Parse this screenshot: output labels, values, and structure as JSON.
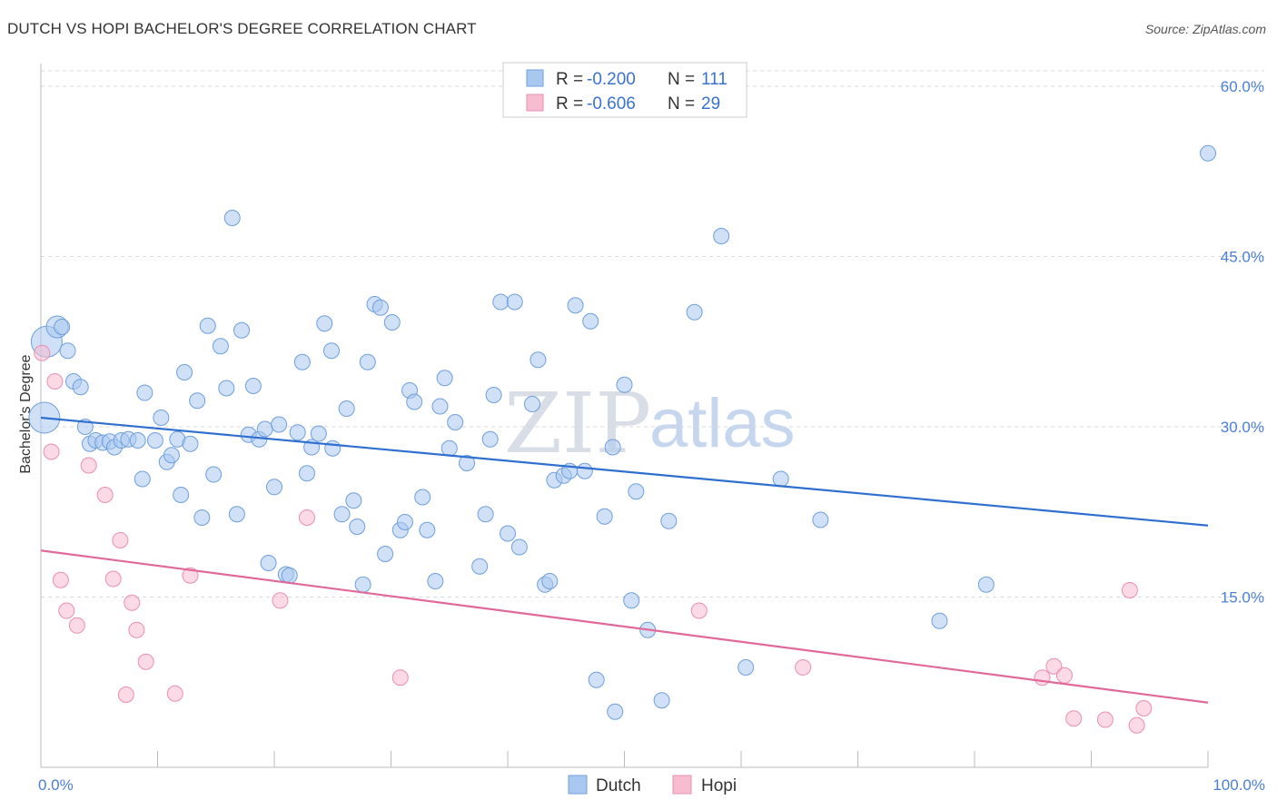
{
  "title": "DUTCH VS HOPI BACHELOR'S DEGREE CORRELATION CHART",
  "source": "Source: ZipAtlas.com",
  "watermark": {
    "zip": "ZIP",
    "atlas": "atlas"
  },
  "colors": {
    "dutch_fill": "#a9c8f0",
    "dutch_stroke": "#6f9fdc",
    "dutch_line": "#2f6fcf",
    "hopi_fill": "#f7bcd0",
    "hopi_stroke": "#ea8fb0",
    "hopi_line": "#e0699a",
    "tick": "#4a7fd4",
    "grid": "#d9d9d9"
  },
  "legend": {
    "rows": [
      {
        "r_label": "R = ",
        "r_value": "-0.200",
        "n_label": "N = ",
        "n_value": "111"
      },
      {
        "r_label": "R = ",
        "r_value": "-0.606",
        "n_label": "N = ",
        "n_value": "29"
      }
    ]
  },
  "chart_data": {
    "type": "scatter",
    "title": "DUTCH VS HOPI BACHELOR'S DEGREE CORRELATION CHART",
    "xlabel": "",
    "ylabel": "Bachelor's Degree",
    "xlim": [
      0,
      100
    ],
    "ylim": [
      0,
      62
    ],
    "x_tick_labels": [
      {
        "value": 0,
        "label": "0.0%"
      },
      {
        "value": 100,
        "label": "100.0%"
      }
    ],
    "y_tick_labels": [
      {
        "value": 15,
        "label": "15.0%"
      },
      {
        "value": 30,
        "label": "30.0%"
      },
      {
        "value": 45,
        "label": "45.0%"
      },
      {
        "value": 60,
        "label": "60.0%"
      }
    ],
    "grid": true,
    "legend_position": "top-center",
    "series": [
      {
        "name": "Dutch",
        "r": -0.2,
        "n": 111,
        "trend": {
          "x0": 0,
          "y0": 30.8,
          "x1": 100,
          "y1": 21.3
        },
        "points": [
          [
            0.5,
            37.5,
            3
          ],
          [
            0.3,
            30.8,
            3
          ],
          [
            1.4,
            38.8,
            2
          ],
          [
            1.8,
            38.8,
            1
          ],
          [
            2.3,
            36.7,
            1
          ],
          [
            2.8,
            34.0,
            1
          ],
          [
            3.4,
            33.5,
            1
          ],
          [
            3.8,
            30.0,
            1
          ],
          [
            4.2,
            28.5,
            1
          ],
          [
            4.7,
            28.8,
            1
          ],
          [
            5.3,
            28.6,
            1
          ],
          [
            5.9,
            28.7,
            1
          ],
          [
            6.3,
            28.2,
            1
          ],
          [
            6.9,
            28.8,
            1
          ],
          [
            7.5,
            28.9,
            1
          ],
          [
            8.3,
            28.8,
            1
          ],
          [
            8.7,
            25.4,
            1
          ],
          [
            8.9,
            33.0,
            1
          ],
          [
            9.8,
            28.8,
            1
          ],
          [
            10.3,
            30.8,
            1
          ],
          [
            10.8,
            26.9,
            1
          ],
          [
            11.2,
            27.5,
            1
          ],
          [
            11.7,
            28.9,
            1
          ],
          [
            12.0,
            24.0,
            1
          ],
          [
            12.3,
            34.8,
            1
          ],
          [
            12.8,
            28.5,
            1
          ],
          [
            13.4,
            32.3,
            1
          ],
          [
            13.8,
            22.0,
            1
          ],
          [
            14.3,
            38.9,
            1
          ],
          [
            14.8,
            25.8,
            1
          ],
          [
            15.4,
            37.1,
            1
          ],
          [
            15.9,
            33.4,
            1
          ],
          [
            16.4,
            48.4,
            1
          ],
          [
            16.8,
            22.3,
            1
          ],
          [
            17.2,
            38.5,
            1
          ],
          [
            17.8,
            29.3,
            1
          ],
          [
            18.2,
            33.6,
            1
          ],
          [
            18.7,
            28.9,
            1
          ],
          [
            19.2,
            29.8,
            1
          ],
          [
            19.5,
            18.0,
            1
          ],
          [
            20.0,
            24.7,
            1
          ],
          [
            20.4,
            30.2,
            1
          ],
          [
            21.0,
            17.0,
            1
          ],
          [
            21.3,
            16.9,
            1
          ],
          [
            22.0,
            29.5,
            1
          ],
          [
            22.4,
            35.7,
            1
          ],
          [
            22.8,
            25.9,
            1
          ],
          [
            23.2,
            28.2,
            1
          ],
          [
            23.8,
            29.4,
            1
          ],
          [
            24.3,
            39.1,
            1
          ],
          [
            24.9,
            36.7,
            1
          ],
          [
            25.0,
            28.1,
            1
          ],
          [
            25.8,
            22.3,
            1
          ],
          [
            26.2,
            31.6,
            1
          ],
          [
            26.8,
            23.5,
            1
          ],
          [
            27.1,
            21.2,
            1
          ],
          [
            27.6,
            16.1,
            1
          ],
          [
            28.0,
            35.7,
            1
          ],
          [
            28.6,
            40.8,
            1
          ],
          [
            29.1,
            40.5,
            1
          ],
          [
            29.5,
            18.8,
            1
          ],
          [
            30.1,
            39.2,
            1
          ],
          [
            30.8,
            20.9,
            1
          ],
          [
            31.2,
            21.6,
            1
          ],
          [
            31.6,
            33.2,
            1
          ],
          [
            32.0,
            32.2,
            1
          ],
          [
            32.7,
            23.8,
            1
          ],
          [
            33.1,
            20.9,
            1
          ],
          [
            33.8,
            16.4,
            1
          ],
          [
            34.2,
            31.8,
            1
          ],
          [
            34.6,
            34.3,
            1
          ],
          [
            35.0,
            28.1,
            1
          ],
          [
            35.5,
            30.4,
            1
          ],
          [
            36.5,
            26.8,
            1
          ],
          [
            37.6,
            17.7,
            1
          ],
          [
            38.1,
            22.3,
            1
          ],
          [
            38.5,
            28.9,
            1
          ],
          [
            38.8,
            32.8,
            1
          ],
          [
            39.4,
            41.0,
            1
          ],
          [
            40.0,
            20.6,
            1
          ],
          [
            40.6,
            41.0,
            1
          ],
          [
            41.0,
            19.4,
            1
          ],
          [
            42.1,
            32.0,
            1
          ],
          [
            42.6,
            35.9,
            1
          ],
          [
            43.2,
            16.1,
            1
          ],
          [
            43.6,
            16.4,
            1
          ],
          [
            44.0,
            25.3,
            1
          ],
          [
            44.8,
            25.7,
            1
          ],
          [
            45.3,
            26.1,
            1
          ],
          [
            45.8,
            40.7,
            1
          ],
          [
            46.6,
            26.1,
            1
          ],
          [
            47.1,
            39.3,
            1
          ],
          [
            47.6,
            7.7,
            1
          ],
          [
            48.3,
            22.1,
            1
          ],
          [
            49.0,
            28.2,
            1
          ],
          [
            49.2,
            4.9,
            1
          ],
          [
            50.0,
            33.7,
            1
          ],
          [
            50.6,
            14.7,
            1
          ],
          [
            51.0,
            24.3,
            1
          ],
          [
            52.0,
            12.1,
            1
          ],
          [
            53.2,
            5.9,
            1
          ],
          [
            53.8,
            21.7,
            1
          ],
          [
            56.0,
            40.1,
            1
          ],
          [
            58.3,
            46.8,
            1
          ],
          [
            60.4,
            8.8,
            1
          ],
          [
            63.4,
            25.4,
            1
          ],
          [
            66.8,
            21.8,
            1
          ],
          [
            77.0,
            12.9,
            1
          ],
          [
            81.0,
            16.1,
            1
          ],
          [
            100.0,
            54.1,
            1
          ]
        ]
      },
      {
        "name": "Hopi",
        "r": -0.606,
        "n": 29,
        "trend": {
          "x0": 0,
          "y0": 19.1,
          "x1": 100,
          "y1": 5.7
        },
        "points": [
          [
            0.1,
            36.5
          ],
          [
            0.9,
            27.8
          ],
          [
            1.2,
            34.0
          ],
          [
            1.7,
            16.5
          ],
          [
            2.2,
            13.8
          ],
          [
            3.1,
            12.5
          ],
          [
            4.1,
            26.6
          ],
          [
            5.5,
            24.0
          ],
          [
            6.2,
            16.6
          ],
          [
            6.8,
            20.0
          ],
          [
            7.3,
            6.4
          ],
          [
            7.8,
            14.5
          ],
          [
            8.2,
            12.1
          ],
          [
            9.0,
            9.3
          ],
          [
            11.5,
            6.5
          ],
          [
            12.8,
            16.9
          ],
          [
            20.5,
            14.7
          ],
          [
            22.8,
            22.0
          ],
          [
            30.8,
            7.9
          ],
          [
            56.4,
            13.8
          ],
          [
            65.3,
            8.8
          ],
          [
            85.8,
            7.9
          ],
          [
            86.8,
            8.9
          ],
          [
            87.7,
            8.1
          ],
          [
            88.5,
            4.3
          ],
          [
            91.2,
            4.2
          ],
          [
            93.3,
            15.6
          ],
          [
            93.9,
            3.7
          ],
          [
            94.5,
            5.2
          ]
        ]
      }
    ]
  }
}
